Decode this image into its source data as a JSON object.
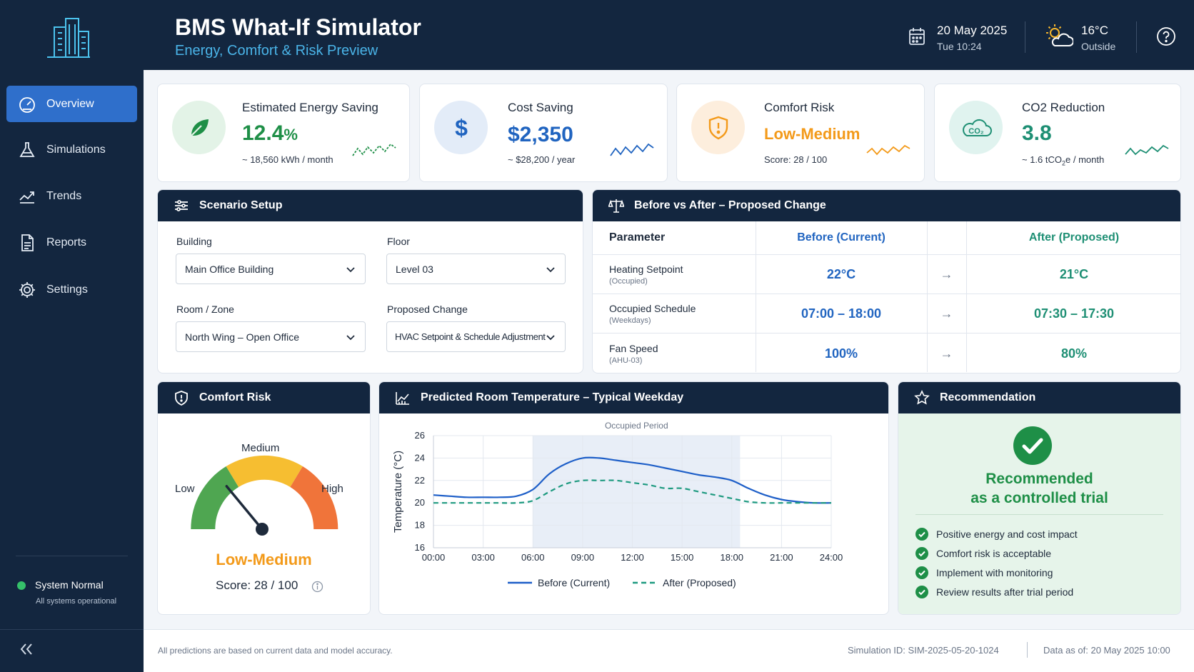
{
  "sidebar": {
    "items": [
      {
        "label": "Overview",
        "icon": "gauge-icon",
        "active": true
      },
      {
        "label": "Simulations",
        "icon": "flask-icon",
        "active": false
      },
      {
        "label": "Trends",
        "icon": "trend-chart-icon",
        "active": false
      },
      {
        "label": "Reports",
        "icon": "document-icon",
        "active": false
      },
      {
        "label": "Settings",
        "icon": "gear-icon",
        "active": false
      }
    ],
    "status": {
      "title": "System Normal",
      "subtitle": "All systems operational",
      "color": "#35c06a"
    }
  },
  "header": {
    "title": "BMS What-If Simulator",
    "subtitle": "Energy, Comfort & Risk Preview",
    "date": "20 May 2025",
    "time": "Tue 10:24",
    "temperature": "16°C",
    "temperature_label": "Outside"
  },
  "kpis": [
    {
      "label": "Estimated Energy Saving",
      "value": "12.4",
      "unit": "%",
      "sub": "~ 18,560 kWh / month",
      "icon": "leaf-icon",
      "color": "#1e8f47",
      "bg": "#e3f3e7"
    },
    {
      "label": "Cost Saving",
      "value": "$2,350",
      "sub": "~ $28,200 / year",
      "icon": "dollar-icon",
      "color": "#2064c0",
      "bg": "#e3ecf8"
    },
    {
      "label": "Comfort Risk",
      "value": "Low-Medium",
      "sub": "Score: 28 / 100",
      "icon": "shield-alert-icon",
      "color": "#f39a1a",
      "bg": "#fdeedd"
    },
    {
      "label": "CO2 Reduction",
      "value": "3.8",
      "sub_prefix": "~ 1.6 tCO",
      "sub_sub": "2",
      "sub_suffix": "e / month",
      "icon": "co2-cloud-icon",
      "color": "#1e8f74",
      "bg": "#e0f3ef"
    }
  ],
  "scenario": {
    "title": "Scenario Setup",
    "fields": {
      "building": {
        "label": "Building",
        "value": "Main Office Building"
      },
      "floor": {
        "label": "Floor",
        "value": "Level 03"
      },
      "zone": {
        "label": "Room / Zone",
        "value": "North Wing – Open Office"
      },
      "change": {
        "label": "Proposed Change",
        "value": "HVAC Setpoint & Schedule Adjustment"
      }
    }
  },
  "comparison": {
    "title": "Before vs After – Proposed Change",
    "headers": {
      "parameter": "Parameter",
      "before": "Before (Current)",
      "after": "After (Proposed)"
    },
    "rows": [
      {
        "name": "Heating Setpoint",
        "sub": "(Occupied)",
        "before": "22°C",
        "after": "21°C"
      },
      {
        "name": "Occupied Schedule",
        "sub": "(Weekdays)",
        "before": "07:00 – 18:00",
        "after": "07:30 – 17:30"
      },
      {
        "name": "Fan Speed",
        "sub": "(AHU-03)",
        "before": "100%",
        "after": "80%"
      }
    ]
  },
  "comfort": {
    "title": "Comfort Risk",
    "labels": {
      "low": "Low",
      "medium": "Medium",
      "high": "High"
    },
    "value": "Low-Medium",
    "score_text": "Score: 28 / 100",
    "score": 28
  },
  "chart_title": "Predicted Room Temperature – Typical Weekday",
  "chart_data": {
    "type": "line",
    "title": "Predicted Room Temperature – Typical Weekday",
    "ylabel": "Temperature (°C)",
    "xlabel": "",
    "x": [
      "00:00",
      "01:00",
      "02:00",
      "03:00",
      "04:00",
      "05:00",
      "06:00",
      "07:00",
      "08:00",
      "09:00",
      "10:00",
      "11:00",
      "12:00",
      "13:00",
      "14:00",
      "15:00",
      "16:00",
      "17:00",
      "18:00",
      "19:00",
      "20:00",
      "21:00",
      "22:00",
      "23:00",
      "24:00"
    ],
    "xticks": [
      "00:00",
      "03:00",
      "06:00",
      "09:00",
      "12:00",
      "15:00",
      "18:00",
      "21:00",
      "24:00"
    ],
    "ylim": [
      16,
      26
    ],
    "yticks": [
      16,
      18,
      20,
      22,
      24,
      26
    ],
    "grid": true,
    "annotation": {
      "label": "Occupied Period",
      "from": "06:00",
      "to": "18:30"
    },
    "legend_position": "bottom",
    "series": [
      {
        "name": "Before (Current)",
        "style": "solid",
        "color": "#1e5fc8",
        "values": [
          20.7,
          20.6,
          20.5,
          20.5,
          20.5,
          20.6,
          21.2,
          22.6,
          23.5,
          24.0,
          24.0,
          23.8,
          23.6,
          23.4,
          23.1,
          22.8,
          22.5,
          22.3,
          22.0,
          21.3,
          20.7,
          20.3,
          20.1,
          20.0,
          20.0
        ]
      },
      {
        "name": "After (Proposed)",
        "style": "dashed",
        "color": "#1e9a80",
        "values": [
          20.0,
          20.0,
          20.0,
          20.0,
          20.0,
          20.0,
          20.2,
          21.0,
          21.7,
          22.0,
          22.0,
          22.0,
          21.8,
          21.6,
          21.3,
          21.3,
          21.0,
          20.7,
          20.4,
          20.1,
          20.0,
          20.0,
          20.0,
          20.0,
          20.0
        ]
      }
    ]
  },
  "recommendation": {
    "title": "Recommendation",
    "headline_1": "Recommended",
    "headline_2": "as a controlled trial",
    "items": [
      "Positive energy and cost impact",
      "Comfort risk is acceptable",
      "Implement with monitoring",
      "Review results after trial period"
    ]
  },
  "footer": {
    "note": "All predictions are based on current data and model accuracy.",
    "simulation_id": "Simulation ID: SIM-2025-05-20-1024",
    "data_as_of": "Data as of:  20 May 2025 10:00"
  }
}
